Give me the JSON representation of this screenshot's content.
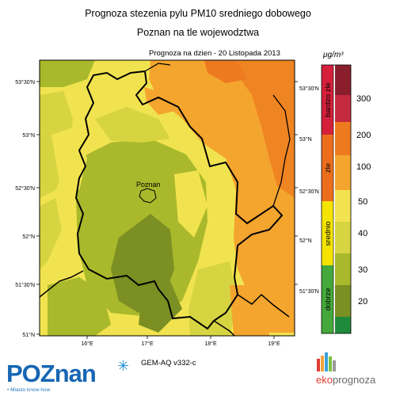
{
  "title_line1": "Prognoza stezenia pylu PM10 sredniego dobowego",
  "title_line2": "Poznan na tle wojewodztwa",
  "forecast_date": "Prognoza na dzien -  20 Listopada 2013",
  "unit": "μg/m³",
  "model": "GEM-AQ v332-c",
  "city_label": "Poznan",
  "lat_labels_left": [
    "53°30'N",
    "53°N",
    "52°30'N",
    "52°N",
    "51°30'N",
    "51°N"
  ],
  "lat_labels_right": [
    "53°30'N",
    "53°N",
    "52°30'N",
    "52°N",
    "51°30'N"
  ],
  "lon_labels": [
    "16°E",
    "17°E",
    "18°E",
    "19°E"
  ],
  "scale": {
    "categories": [
      {
        "label": "dobrze",
        "color": "#44a93a"
      },
      {
        "label": "srednio",
        "color": "#f4e400"
      },
      {
        "label": "zle",
        "color": "#ec6e1d"
      },
      {
        "label": "bardzo zle",
        "color": "#d5203b"
      }
    ],
    "levels": [
      {
        "value": "",
        "color": "#1f8a3b"
      },
      {
        "value": "20",
        "color": "#7b8f23"
      },
      {
        "value": "30",
        "color": "#a9b92b"
      },
      {
        "value": "40",
        "color": "#d7d442"
      },
      {
        "value": "50",
        "color": "#f1e34f"
      },
      {
        "value": "100",
        "color": "#f4a52e"
      },
      {
        "value": "200",
        "color": "#ee7a1f"
      },
      {
        "value": "300",
        "color": "#c52a3f"
      },
      {
        "value": "",
        "color": "#8a1e2d"
      }
    ]
  },
  "logos": {
    "poznan_main": "POZnan",
    "poznan_tag": "• Miasto know-how",
    "eko_prefix": "eko",
    "eko_suffix": "prognoza"
  }
}
